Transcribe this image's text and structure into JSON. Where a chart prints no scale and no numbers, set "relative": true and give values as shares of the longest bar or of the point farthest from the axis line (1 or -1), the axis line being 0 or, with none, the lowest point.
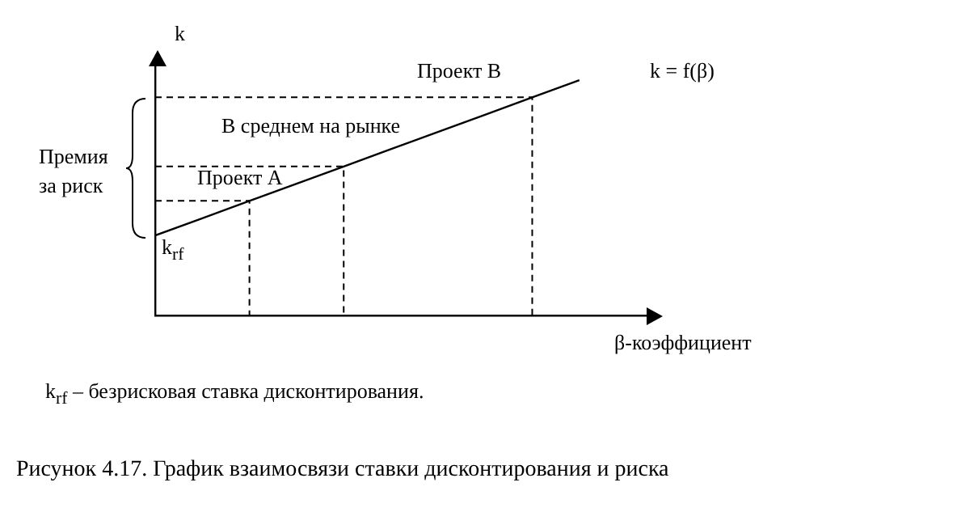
{
  "chart_data": {
    "type": "line",
    "title": "Рисунок 4.17.  График взаимосвязи ставки дисконтирования и риска",
    "xlabel": "β-коэффициент",
    "ylabel": "k",
    "relative": true,
    "categories": [
      null,
      null,
      null,
      null,
      null,
      null,
      null,
      null,
      null,
      null
    ],
    "series": [
      {
        "color": "#000000",
        "marker": "none",
        "line_style": "solid",
        "values": [
          0.34,
          0.413,
          0.487,
          0.56,
          0.633,
          0.707,
          0.78,
          0.853,
          0.927,
          1
        ]
      }
    ],
    "ref_lines": [
      {
        "axis": "y",
        "value": 0.487,
        "color": "#000000",
        "line_style": "dashed"
      },
      {
        "axis": "y",
        "value": 0.633,
        "color": "#000000",
        "line_style": "dashed"
      },
      {
        "axis": "y",
        "value": 0.927,
        "color": "#000000",
        "line_style": "dashed"
      }
    ],
    "annotations": [
      "Проект B",
      "k = f(β)",
      "В среднем на рынке",
      "Проект А",
      "Премия за риск",
      "k$_{rf}$",
      "k$_{rf}$ –  безрисковая ставка дисконтирования."
    ]
  }
}
